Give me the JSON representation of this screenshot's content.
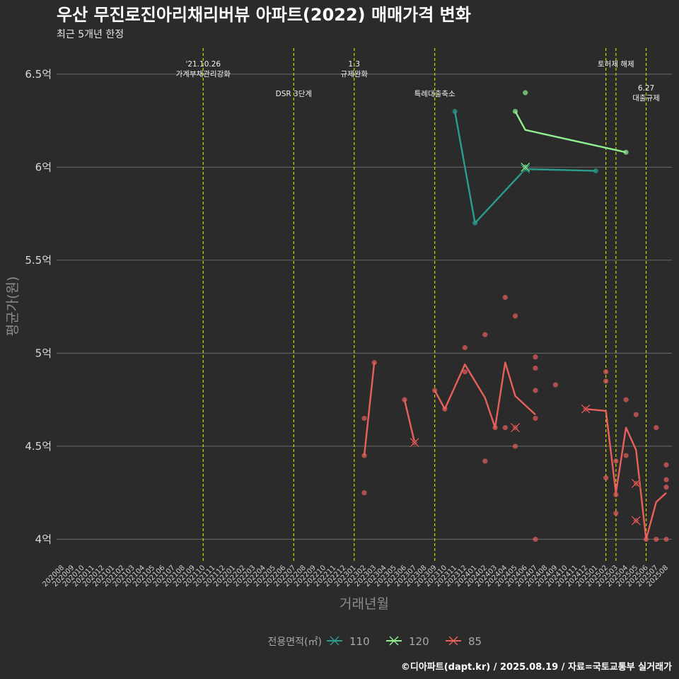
{
  "chart_data": {
    "type": "line",
    "title": "우산 무진로진아리채리버뷰 아파트(2022) 매매가격 변화",
    "subtitle": "최근 5개년 한정",
    "xlabel": "거래년월",
    "ylabel": "평균가(원)",
    "caption": "©디아파트(dapt.kr) / 2025.08.19 / 자료=국토교통부 실거래가",
    "legend_title": "전용면적(㎡)",
    "legend_position": "bottom",
    "ylim": [
      3.88,
      6.64
    ],
    "y_ticks": [
      {
        "value": 4.0,
        "label": "4억"
      },
      {
        "value": 4.5,
        "label": "4.5억"
      },
      {
        "value": 5.0,
        "label": "5억"
      },
      {
        "value": 5.5,
        "label": "5.5억"
      },
      {
        "value": 6.0,
        "label": "6억"
      },
      {
        "value": 6.5,
        "label": "6.5억"
      }
    ],
    "categories": [
      "202008",
      "202009",
      "202010",
      "202011",
      "202012",
      "202101",
      "202102",
      "202103",
      "202104",
      "202105",
      "202106",
      "202107",
      "202108",
      "202109",
      "202110",
      "202111",
      "202112",
      "202201",
      "202202",
      "202203",
      "202204",
      "202205",
      "202206",
      "202207",
      "202208",
      "202209",
      "202210",
      "202211",
      "202212",
      "202301",
      "202302",
      "202303",
      "202304",
      "202305",
      "202306",
      "202307",
      "202308",
      "202309",
      "202310",
      "202311",
      "202312",
      "202401",
      "202402",
      "202403",
      "202404",
      "202405",
      "202406",
      "202407",
      "202408",
      "202409",
      "202410",
      "202411",
      "202412",
      "202501",
      "202502",
      "202503",
      "202504",
      "202505",
      "202506",
      "202507",
      "202508"
    ],
    "events": [
      {
        "x": "202110",
        "row": 1,
        "lines": [
          "'21.10.26",
          "가계부채관리강화"
        ]
      },
      {
        "x": "202207",
        "row": 2,
        "lines": [
          "DSR 3단계"
        ]
      },
      {
        "x": "202301",
        "row": 1,
        "lines": [
          "1.3",
          "규제완화"
        ]
      },
      {
        "x": "202309",
        "row": 2,
        "lines": [
          "특례대출축소"
        ]
      },
      {
        "x": "202502",
        "row": 0,
        "lines": []
      },
      {
        "x": "202503",
        "row": 1,
        "lines": [
          "토허제 해제"
        ]
      },
      {
        "x": "202506",
        "row": 3,
        "lines": [
          "6.27",
          "대출규제"
        ]
      }
    ],
    "series": [
      {
        "name": "110",
        "color": "#2a9d8f",
        "line": [
          [
            "202311",
            6.3
          ],
          [
            "202401",
            5.7
          ],
          [
            "202406",
            5.99
          ],
          [
            "202501",
            5.98
          ]
        ],
        "points": [
          [
            "202311",
            6.3
          ],
          [
            "202401",
            5.7
          ],
          [
            "202406",
            6.0
          ],
          [
            "202406",
            5.99
          ],
          [
            "202501",
            5.98
          ]
        ],
        "crosses": [
          [
            "202406",
            5.99
          ]
        ]
      },
      {
        "name": "120",
        "color": "#90ee90",
        "line": [
          [
            "202405",
            6.3
          ],
          [
            "202406",
            6.2
          ],
          [
            "202504",
            6.08
          ]
        ],
        "points": [
          [
            "202405",
            6.3
          ],
          [
            "202406",
            6.4
          ],
          [
            "202406",
            6.0
          ],
          [
            "202504",
            6.08
          ]
        ],
        "crosses": [
          [
            "202406",
            6.0
          ]
        ]
      },
      {
        "name": "85",
        "color": "#e8605c",
        "line_segments": [
          [
            [
              "202302",
              4.45
            ],
            [
              "202303",
              4.95
            ]
          ],
          [
            [
              "202306",
              4.75
            ],
            [
              "202307",
              4.52
            ]
          ],
          [
            [
              "202309",
              4.8
            ],
            [
              "202310",
              4.7
            ],
            [
              "202312",
              4.94
            ],
            [
              "202402",
              4.76
            ],
            [
              "202403",
              4.6
            ],
            [
              "202404",
              4.95
            ],
            [
              "202405",
              4.77
            ],
            [
              "202407",
              4.67
            ]
          ],
          [
            [
              "202412",
              4.7
            ],
            [
              "202502",
              4.69
            ],
            [
              "202503",
              4.25
            ],
            [
              "202504",
              4.6
            ],
            [
              "202505",
              4.48
            ],
            [
              "202506",
              4.0
            ],
            [
              "202507",
              4.2
            ],
            [
              "202508",
              4.25
            ]
          ]
        ],
        "points": [
          [
            "202302",
            4.65
          ],
          [
            "202302",
            4.45
          ],
          [
            "202302",
            4.25
          ],
          [
            "202303",
            4.95
          ],
          [
            "202306",
            4.75
          ],
          [
            "202307",
            4.52
          ],
          [
            "202309",
            4.8
          ],
          [
            "202310",
            4.7
          ],
          [
            "202312",
            4.9
          ],
          [
            "202402",
            5.1
          ],
          [
            "202402",
            4.42
          ],
          [
            "202312",
            5.03
          ],
          [
            "202403",
            4.6
          ],
          [
            "202404",
            5.3
          ],
          [
            "202404",
            4.6
          ],
          [
            "202405",
            5.2
          ],
          [
            "202405",
            4.6
          ],
          [
            "202405",
            4.5
          ],
          [
            "202407",
            4.98
          ],
          [
            "202407",
            4.92
          ],
          [
            "202407",
            4.8
          ],
          [
            "202407",
            4.65
          ],
          [
            "202407",
            4.0
          ],
          [
            "202409",
            4.83
          ],
          [
            "202412",
            4.7
          ],
          [
            "202502",
            4.9
          ],
          [
            "202502",
            4.85
          ],
          [
            "202502",
            4.33
          ],
          [
            "202503",
            4.42
          ],
          [
            "202503",
            4.24
          ],
          [
            "202503",
            4.14
          ],
          [
            "202504",
            4.75
          ],
          [
            "202504",
            4.45
          ],
          [
            "202505",
            4.67
          ],
          [
            "202505",
            4.3
          ],
          [
            "202505",
            4.1
          ],
          [
            "202506",
            4.0
          ],
          [
            "202507",
            4.6
          ],
          [
            "202507",
            4.0
          ],
          [
            "202508",
            4.4
          ],
          [
            "202508",
            4.32
          ],
          [
            "202508",
            4.28
          ],
          [
            "202508",
            4.0
          ]
        ],
        "crosses": [
          [
            "202307",
            4.52
          ],
          [
            "202405",
            4.6
          ],
          [
            "202412",
            4.7
          ],
          [
            "202505",
            4.3
          ],
          [
            "202505",
            4.1
          ]
        ]
      }
    ]
  }
}
